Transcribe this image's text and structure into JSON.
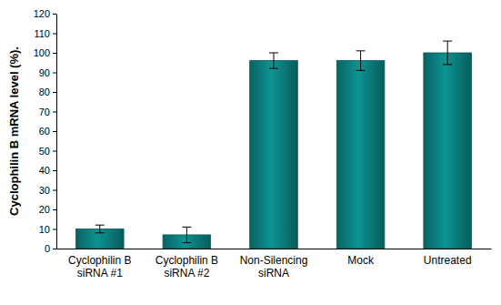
{
  "chart_data": {
    "type": "bar",
    "y_label": "Cyclophilin B mRNA level (%).",
    "categories": [
      "Cyclophilin B siRNA #1",
      "Cyclophilin B siRNA #2",
      "Non-Silencing siRNA",
      "Mock",
      "Untreated"
    ],
    "values": [
      10,
      7,
      96,
      96,
      100
    ],
    "errors": [
      2,
      4,
      4,
      5,
      6
    ],
    "color": "#0b7b7b",
    "ylim": [
      0,
      120
    ],
    "yticks": [
      0,
      10,
      20,
      30,
      40,
      50,
      60,
      70,
      80,
      90,
      100,
      110,
      120
    ],
    "grid": false
  }
}
